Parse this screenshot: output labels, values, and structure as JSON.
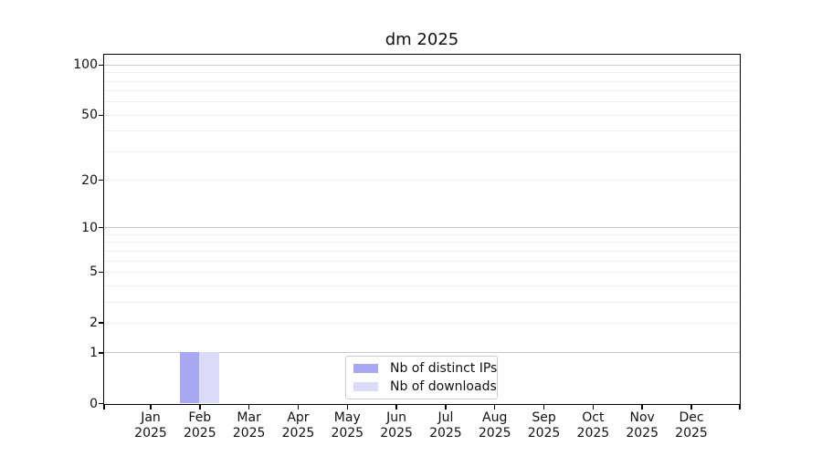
{
  "chart_data": {
    "type": "bar",
    "title": "dm 2025",
    "categories": [
      "Jan",
      "Feb",
      "Mar",
      "Apr",
      "May",
      "Jun",
      "Jul",
      "Aug",
      "Sep",
      "Oct",
      "Nov",
      "Dec"
    ],
    "x_tick_year_line": "2025",
    "series": [
      {
        "name": "Nb of distinct IPs",
        "color": "#a8a8f2",
        "values": [
          0,
          1,
          0,
          0,
          0,
          0,
          0,
          0,
          0,
          0,
          0,
          0
        ]
      },
      {
        "name": "Nb of downloads",
        "color": "#dcdcf8",
        "values": [
          0,
          1,
          0,
          0,
          0,
          0,
          0,
          0,
          0,
          0,
          0,
          0
        ]
      }
    ],
    "yscale": "log10(value+1)",
    "ylim": [
      0,
      114.6
    ],
    "y_ticks": [
      {
        "value": 0,
        "label": "0"
      },
      {
        "value": 1,
        "label": "1"
      },
      {
        "value": 2,
        "label": "2"
      },
      {
        "value": 5,
        "label": "5"
      },
      {
        "value": 10,
        "label": "10"
      },
      {
        "value": 20,
        "label": "20"
      },
      {
        "value": 50,
        "label": "50"
      },
      {
        "value": 100,
        "label": "100"
      }
    ],
    "y_major_gridlines": [
      1,
      10,
      100
    ],
    "y_minor_gridlines": [
      2,
      3,
      4,
      5,
      6,
      7,
      8,
      9,
      20,
      30,
      40,
      50,
      60,
      70,
      80,
      90
    ],
    "grid": "horizontal",
    "legend_position": "lower center inside plot",
    "xlabel": "",
    "ylabel": ""
  },
  "colors": {
    "background": "#ffffff",
    "axis": "#000000",
    "major_grid": "#c9c9c9",
    "minor_grid": "#f0f0f0",
    "legend_border": "#cccccc",
    "bar_distinct_ips": "#a8a8f2",
    "bar_downloads": "#dcdcf8"
  }
}
